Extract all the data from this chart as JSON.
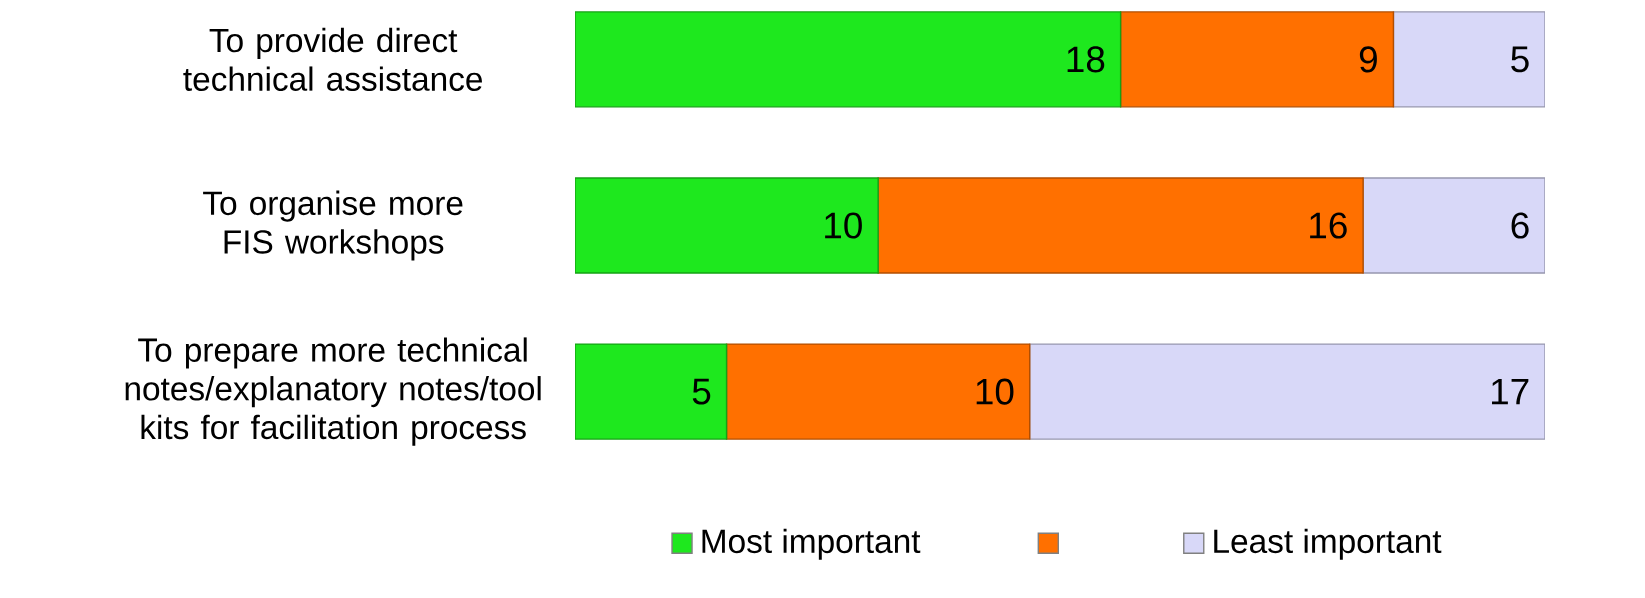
{
  "chart_data": {
    "type": "bar",
    "orientation": "horizontal",
    "stacked": true,
    "data_labels": true,
    "legend": "bottom",
    "tick_labels": "y",
    "categories": [
      "To provide direct technical assistance",
      "To organise more FIS workshops",
      "To prepare more technical notes/explanatory notes/tool kits for facilitation process"
    ],
    "series": [
      {
        "name": "Most important",
        "color": "#1ee81e",
        "values": [
          18,
          10,
          5
        ]
      },
      {
        "color": "#ff7000",
        "values": [
          9,
          16,
          10
        ]
      },
      {
        "name": "Least important",
        "color": "#d8d8f8",
        "values": [
          5,
          6,
          17
        ]
      }
    ]
  }
}
